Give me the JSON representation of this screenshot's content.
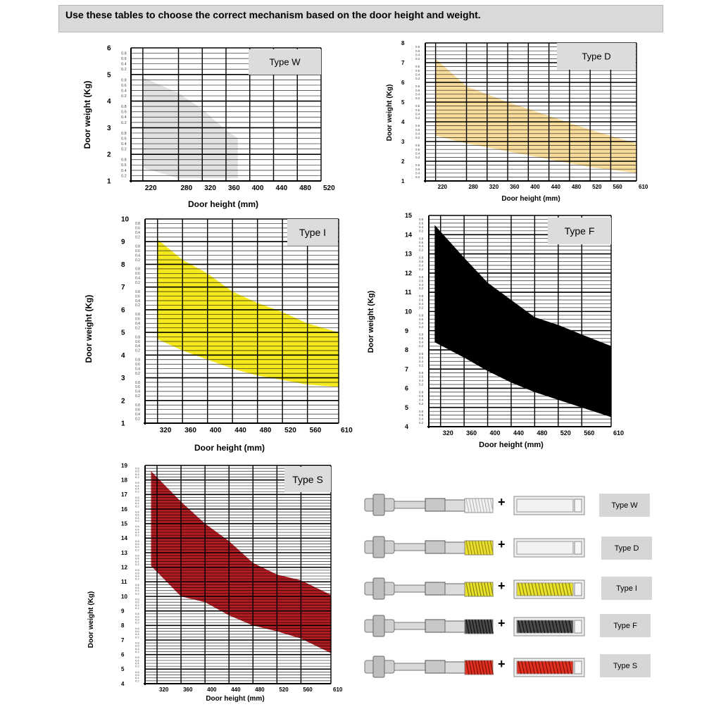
{
  "header": {
    "text": "Use these tables to choose the correct mechanism based on the door height and weight."
  },
  "colors": {
    "grid": "#000000",
    "banner_bg": "#d9d9d9",
    "badge_bg": "#d6d6d6"
  },
  "chart_data": [
    {
      "type": "area",
      "name": "Type W",
      "label": "Type W",
      "color": "#e1e1e1",
      "xlabel": "Door height (mm)",
      "ylabel": "Door weight (Kg)",
      "x_ticks": [
        220,
        280,
        320,
        360,
        400,
        440,
        480,
        520
      ],
      "y_ticks": [
        1,
        2,
        3,
        4,
        5,
        6
      ],
      "minor_labels": [
        "0.8",
        "0.6",
        "0.4",
        "0.2"
      ],
      "xlim": [
        200,
        520
      ],
      "ylim": [
        1,
        6
      ],
      "upper": [
        [
          220,
          4.9
        ],
        [
          280,
          4.3
        ],
        [
          320,
          3.7
        ],
        [
          360,
          2.9
        ],
        [
          380,
          2.6
        ]
      ],
      "lower": [
        [
          220,
          1.5
        ],
        [
          280,
          1.1
        ],
        [
          320,
          1.1
        ],
        [
          360,
          1.1
        ],
        [
          380,
          1.1
        ]
      ]
    },
    {
      "type": "area",
      "name": "Type D",
      "label": "Type D",
      "color": "#f8dc9b",
      "xlabel": "Door height (mm)",
      "ylabel": "Door weight (Kg)",
      "x_ticks": [
        220,
        280,
        320,
        360,
        400,
        440,
        480,
        520,
        560,
        610
      ],
      "y_ticks": [
        1,
        2,
        3,
        4,
        5,
        6,
        7,
        8
      ],
      "minor_labels": [
        "0.8",
        "0.6",
        "0.4",
        "0.2"
      ],
      "xlim": [
        200,
        610
      ],
      "ylim": [
        1,
        8
      ],
      "upper": [
        [
          220,
          7.2
        ],
        [
          280,
          5.8
        ],
        [
          360,
          5.0
        ],
        [
          440,
          4.3
        ],
        [
          520,
          3.6
        ],
        [
          610,
          2.9
        ]
      ],
      "lower": [
        [
          220,
          3.3
        ],
        [
          280,
          2.9
        ],
        [
          360,
          2.5
        ],
        [
          440,
          2.1
        ],
        [
          520,
          1.7
        ],
        [
          610,
          1.4
        ]
      ]
    },
    {
      "type": "area",
      "name": "Type I",
      "label": "Type I",
      "color": "#f3e91e",
      "xlabel": "Door height (mm)",
      "ylabel": "Door weight (Kg)",
      "x_ticks": [
        320,
        360,
        400,
        440,
        480,
        520,
        560,
        610
      ],
      "y_ticks": [
        1,
        2,
        3,
        4,
        5,
        6,
        7,
        8,
        9,
        10
      ],
      "minor_labels": [
        "0.8",
        "0.6",
        "0.4",
        "0.2"
      ],
      "xlim": [
        300,
        610
      ],
      "ylim": [
        1,
        10
      ],
      "upper": [
        [
          320,
          9.1
        ],
        [
          360,
          8.2
        ],
        [
          400,
          7.6
        ],
        [
          440,
          6.8
        ],
        [
          480,
          6.3
        ],
        [
          520,
          5.9
        ],
        [
          560,
          5.4
        ],
        [
          610,
          5.0
        ]
      ],
      "lower": [
        [
          320,
          4.7
        ],
        [
          360,
          4.2
        ],
        [
          400,
          3.8
        ],
        [
          440,
          3.4
        ],
        [
          480,
          3.1
        ],
        [
          520,
          2.9
        ],
        [
          560,
          2.7
        ],
        [
          610,
          2.6
        ]
      ]
    },
    {
      "type": "area",
      "name": "Type F",
      "label": "Type F",
      "color": "#000000",
      "xlabel": "Door height (mm)",
      "ylabel": "Door weight (Kg)",
      "x_ticks": [
        320,
        360,
        400,
        440,
        480,
        520,
        560,
        610
      ],
      "y_ticks": [
        4,
        5,
        6,
        7,
        8,
        9,
        10,
        11,
        12,
        13,
        14,
        15
      ],
      "minor_labels": [
        "0.8",
        "0.6",
        "0.4",
        "0.2"
      ],
      "xlim": [
        300,
        610
      ],
      "ylim": [
        4,
        15
      ],
      "upper": [
        [
          310,
          14.5
        ],
        [
          360,
          12.8
        ],
        [
          400,
          11.5
        ],
        [
          440,
          10.6
        ],
        [
          480,
          9.7
        ],
        [
          520,
          9.3
        ],
        [
          560,
          8.8
        ],
        [
          610,
          8.2
        ]
      ],
      "lower": [
        [
          310,
          8.4
        ],
        [
          360,
          7.6
        ],
        [
          400,
          6.9
        ],
        [
          440,
          6.3
        ],
        [
          480,
          5.8
        ],
        [
          520,
          5.4
        ],
        [
          560,
          5.0
        ],
        [
          610,
          4.5
        ]
      ]
    },
    {
      "type": "area",
      "name": "Type S",
      "label": "Type S",
      "color": "#b11b22",
      "xlabel": "Door height (mm)",
      "ylabel": "Door weight (Kg)",
      "x_ticks": [
        320,
        360,
        400,
        440,
        480,
        520,
        560,
        610
      ],
      "y_ticks": [
        4,
        5,
        6,
        7,
        8,
        9,
        10,
        11,
        12,
        13,
        14,
        15,
        16,
        17,
        18,
        19
      ],
      "minor_labels": [
        "0.8",
        "0.6",
        "0.4",
        "0.2"
      ],
      "xlim": [
        300,
        610
      ],
      "ylim": [
        4,
        19
      ],
      "upper": [
        [
          310,
          18.6
        ],
        [
          360,
          16.5
        ],
        [
          400,
          15.0
        ],
        [
          440,
          13.8
        ],
        [
          480,
          12.3
        ],
        [
          520,
          11.5
        ],
        [
          560,
          11.1
        ],
        [
          610,
          10.1
        ]
      ],
      "lower": [
        [
          310,
          12.1
        ],
        [
          360,
          10.0
        ],
        [
          400,
          9.6
        ],
        [
          440,
          8.7
        ],
        [
          480,
          8.0
        ],
        [
          520,
          7.6
        ],
        [
          560,
          7.1
        ],
        [
          610,
          6.1
        ]
      ]
    }
  ],
  "mechanisms": [
    {
      "badge": "Type W",
      "spring_color": "#f2f2f2",
      "spring_stroke": "#b9b9b9",
      "cartridge_color": "#f2f2f2"
    },
    {
      "badge": "Type D",
      "spring_color": "#e9df2f",
      "spring_stroke": "#9d9114",
      "cartridge_color": "#f2f2f2"
    },
    {
      "badge": "Type I",
      "spring_color": "#e9e22a",
      "spring_stroke": "#888010",
      "cartridge_color": "#e9e22a"
    },
    {
      "badge": "Type F",
      "spring_color": "#4a4a4a",
      "spring_stroke": "#111111",
      "cartridge_color": "#4a4a4a"
    },
    {
      "badge": "Type S",
      "spring_color": "#e03020",
      "spring_stroke": "#7a1008",
      "cartridge_color": "#e03020"
    }
  ],
  "plus_sign": "+"
}
